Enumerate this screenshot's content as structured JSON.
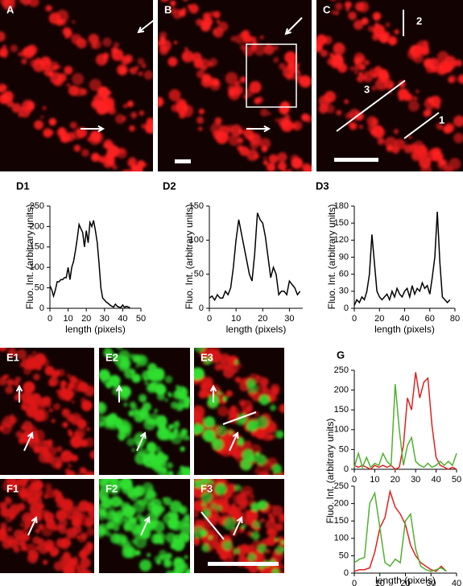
{
  "image_labels": [
    "A",
    "B",
    "C",
    "E1",
    "E2",
    "E3",
    "F1",
    "F2",
    "F3"
  ],
  "line_labels": [
    "1",
    "2",
    "3"
  ],
  "chart_data": [
    {
      "type": "line",
      "title": "D1",
      "xlabel": "length (pixels)",
      "ylabel": "Fluo. Int. (arbitrary units)",
      "color": "#000000",
      "x": [
        0,
        1,
        2,
        3,
        4,
        5,
        6,
        7,
        8,
        9,
        10,
        11,
        12,
        13,
        14,
        15,
        16,
        17,
        18,
        19,
        20,
        21,
        22,
        23,
        24,
        25,
        26,
        27,
        28,
        29,
        30,
        31,
        32,
        33,
        34,
        35,
        36,
        37,
        38,
        39,
        40,
        41,
        42,
        43,
        44
      ],
      "values": [
        55,
        45,
        30,
        45,
        65,
        65,
        70,
        70,
        75,
        75,
        100,
        70,
        100,
        115,
        140,
        170,
        205,
        195,
        185,
        150,
        190,
        160,
        210,
        200,
        215,
        190,
        160,
        110,
        50,
        25,
        20,
        15,
        12,
        8,
        5,
        3,
        10,
        5,
        3,
        2,
        8,
        2,
        5,
        3,
        2
      ],
      "xlim": [
        0,
        50
      ],
      "xticks": [
        0,
        10,
        20,
        30,
        40,
        50
      ],
      "ylim": [
        0,
        250
      ],
      "yticks": [
        0,
        50,
        100,
        150,
        200,
        250
      ]
    },
    {
      "type": "line",
      "title": "D2",
      "xlabel": "length (pixels)",
      "ylabel": "Fluo. Int. (arbitrary units)",
      "color": "#000000",
      "x": [
        0,
        1,
        2,
        3,
        4,
        5,
        6,
        7,
        8,
        9,
        10,
        11,
        12,
        13,
        14,
        15,
        16,
        17,
        18,
        19,
        20,
        21,
        22,
        23,
        24,
        25,
        26,
        27,
        28,
        29,
        30,
        31,
        32,
        33,
        34
      ],
      "values": [
        15,
        18,
        12,
        20,
        15,
        15,
        25,
        20,
        30,
        60,
        100,
        130,
        110,
        90,
        70,
        50,
        40,
        80,
        140,
        130,
        125,
        105,
        75,
        45,
        60,
        50,
        20,
        25,
        25,
        20,
        40,
        35,
        30,
        20,
        25
      ],
      "xlim": [
        0,
        35
      ],
      "xticks": [
        0,
        10,
        20,
        30
      ],
      "ylim": [
        0,
        150
      ],
      "yticks": [
        0,
        50,
        100,
        150
      ]
    },
    {
      "type": "line",
      "title": "D3",
      "xlabel": "length (pixels)",
      "ylabel": "Fluo. Int. (arbitrary units)",
      "color": "#000000",
      "x": [
        0,
        2,
        4,
        6,
        8,
        10,
        12,
        14,
        16,
        18,
        20,
        22,
        24,
        26,
        28,
        30,
        32,
        34,
        36,
        38,
        40,
        42,
        44,
        46,
        48,
        50,
        52,
        54,
        56,
        58,
        60,
        62,
        64,
        66,
        68,
        70,
        72,
        74,
        76
      ],
      "values": [
        5,
        15,
        10,
        20,
        15,
        30,
        60,
        130,
        80,
        30,
        20,
        15,
        20,
        25,
        15,
        30,
        20,
        35,
        25,
        20,
        30,
        35,
        20,
        40,
        25,
        35,
        30,
        45,
        35,
        40,
        25,
        55,
        90,
        170,
        80,
        20,
        15,
        10,
        15
      ],
      "xlim": [
        0,
        80
      ],
      "xticks": [
        0,
        20,
        40,
        60,
        80
      ],
      "ylim": [
        0,
        180
      ],
      "yticks": [
        0,
        30,
        60,
        90,
        120,
        150,
        180
      ]
    },
    {
      "type": "line",
      "title": "G",
      "x": [
        0,
        2,
        4,
        6,
        8,
        10,
        12,
        14,
        16,
        18,
        20,
        22,
        24,
        26,
        28,
        30,
        32,
        34,
        36,
        38,
        40,
        42,
        44,
        46,
        48,
        50
      ],
      "series": [
        {
          "color": "#e02020",
          "values": [
            10,
            5,
            10,
            5,
            0,
            10,
            5,
            10,
            5,
            10,
            0,
            5,
            60,
            180,
            150,
            245,
            180,
            220,
            230,
            110,
            30,
            10,
            5,
            0,
            5,
            0
          ]
        },
        {
          "color": "#50b030",
          "values": [
            5,
            40,
            5,
            30,
            5,
            15,
            10,
            40,
            20,
            10,
            215,
            100,
            10,
            60,
            80,
            20,
            10,
            5,
            15,
            5,
            10,
            20,
            10,
            20,
            10,
            40
          ]
        }
      ],
      "xlim": [
        0,
        50
      ],
      "xticks": [
        0,
        10,
        20,
        30,
        40,
        50
      ],
      "ylim": [
        0,
        250
      ],
      "yticks": [
        0,
        50,
        100,
        150,
        200,
        250
      ]
    },
    {
      "type": "line",
      "xlabel": "length (pixels)",
      "ylabel": "Fluo. Int. (arbitrary units)",
      "x": [
        0,
        2,
        4,
        6,
        8,
        10,
        12,
        14,
        16,
        18,
        20,
        22,
        24,
        26,
        28,
        30,
        32,
        34,
        36
      ],
      "series": [
        {
          "color": "#e02020",
          "values": [
            5,
            10,
            10,
            15,
            60,
            130,
            160,
            235,
            190,
            170,
            140,
            80,
            50,
            30,
            20,
            10,
            5,
            20,
            5
          ]
        },
        {
          "color": "#50b030",
          "values": [
            30,
            40,
            45,
            200,
            230,
            130,
            30,
            20,
            40,
            30,
            150,
            170,
            70,
            20,
            10,
            5,
            10,
            15,
            5
          ]
        }
      ],
      "xlim": [
        0,
        40
      ],
      "xticks": [
        0,
        10,
        20,
        30,
        40
      ],
      "ylim": [
        0,
        250
      ],
      "yticks": [
        0,
        50,
        100,
        150,
        200,
        250
      ]
    }
  ]
}
